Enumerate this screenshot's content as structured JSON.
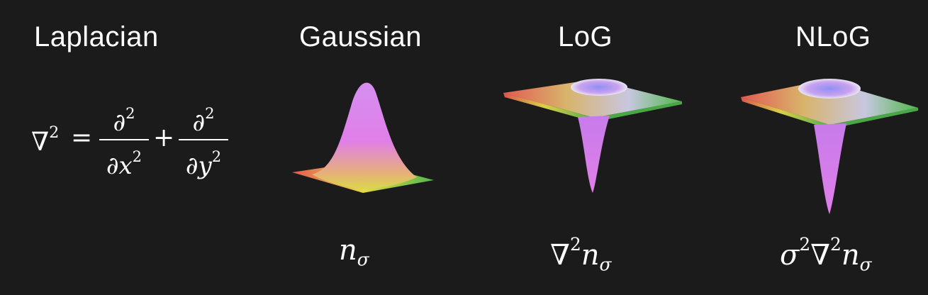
{
  "titles": {
    "laplacian": "Laplacian",
    "gaussian": "Gaussian",
    "log": "LoG",
    "nlog": "NLoG"
  },
  "formula": {
    "lhs_symbol": "∇",
    "lhs_power": "2",
    "equals": "=",
    "plus": "+",
    "partial": "∂",
    "power": "2",
    "den1_var": "x",
    "den2_var": "y"
  },
  "captions": {
    "gaussian": {
      "base": "n",
      "sub": "σ"
    },
    "log": {
      "nabla": "∇",
      "power": "2",
      "base": "n",
      "sub": "σ"
    },
    "nlog": {
      "sigma": "σ",
      "sigma_power": "2",
      "nabla": "∇",
      "nabla_power": "2",
      "base": "n",
      "sub": "σ"
    }
  },
  "colors": {
    "background": "#1b1b1b",
    "text": "#ffffff",
    "surface_peak": "#e07fe8",
    "surface_left": "#e35a52",
    "surface_front": "#e6d94a",
    "surface_right": "#4fb84a",
    "surface_top_ring": "#9a8cf2"
  }
}
